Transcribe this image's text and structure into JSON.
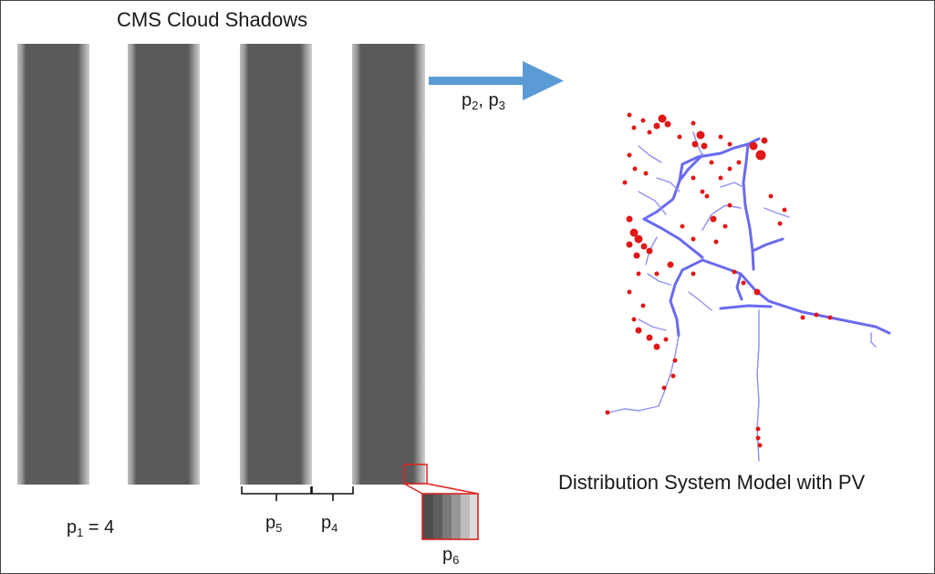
{
  "title": "CMS Cloud Shadows",
  "caption": "Distribution System Model with PV",
  "labels": {
    "p1": {
      "base": "p",
      "sub": "1",
      "rest": " = 4"
    },
    "p23": {
      "a_base": "p",
      "a_sub": "2",
      "sep": ", ",
      "b_base": "p",
      "b_sub": "3"
    },
    "p4": {
      "base": "p",
      "sub": "4"
    },
    "p5": {
      "base": "p",
      "sub": "5"
    },
    "p6": {
      "base": "p",
      "sub": "6"
    }
  },
  "colors": {
    "shadow_core": "#595959",
    "shadow_edge_light": "#bfbfbf",
    "shadow_edge_mid": "#8c8c8c",
    "arrow": "#5b9bd5",
    "zoom_box": "#e02020",
    "feeder_main": "#6a6af0",
    "feeder_load": "#e01818"
  },
  "shadow_band_count": 4
}
